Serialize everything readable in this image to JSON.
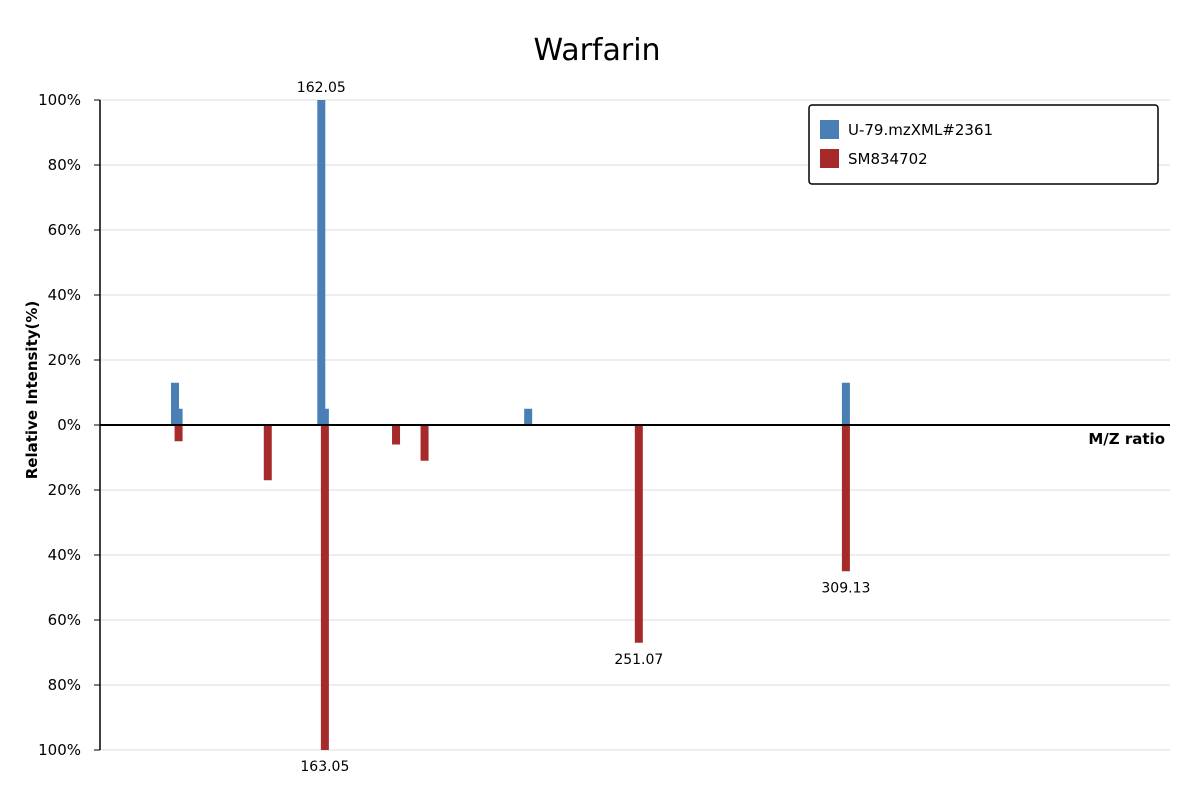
{
  "chart_data": {
    "type": "bar",
    "title": "Warfarin",
    "xlabel": "M/Z ratio",
    "ylabel": "Relative Intensity(%)",
    "y_ticks_top": [
      "100%",
      "80%",
      "60%",
      "40%",
      "20%",
      "0%"
    ],
    "y_ticks_bottom": [
      "20%",
      "40%",
      "60%",
      "80%",
      "100%"
    ],
    "ylim": [
      -100,
      100
    ],
    "xlim": [
      100,
      400
    ],
    "grid": true,
    "legend_position": "top-right",
    "series": [
      {
        "name": "U-79.mzXML#2361",
        "color": "#4a7fb5",
        "direction": "up",
        "points": [
          {
            "x": 121.03,
            "y": 13
          },
          {
            "x": 122.03,
            "y": 5
          },
          {
            "x": 162.05,
            "y": 100,
            "label": "162.05"
          },
          {
            "x": 163.05,
            "y": 5
          },
          {
            "x": 220.05,
            "y": 5
          },
          {
            "x": 309.13,
            "y": 13
          }
        ]
      },
      {
        "name": "SM834702",
        "color": "#a62a2a",
        "direction": "down",
        "points": [
          {
            "x": 122.03,
            "y": 5
          },
          {
            "x": 147.04,
            "y": 17
          },
          {
            "x": 163.05,
            "y": 100,
            "label": "163.05"
          },
          {
            "x": 183.0,
            "y": 6
          },
          {
            "x": 191.0,
            "y": 11
          },
          {
            "x": 251.07,
            "y": 67,
            "label": "251.07"
          },
          {
            "x": 309.13,
            "y": 45,
            "label": "309.13"
          }
        ]
      }
    ]
  }
}
